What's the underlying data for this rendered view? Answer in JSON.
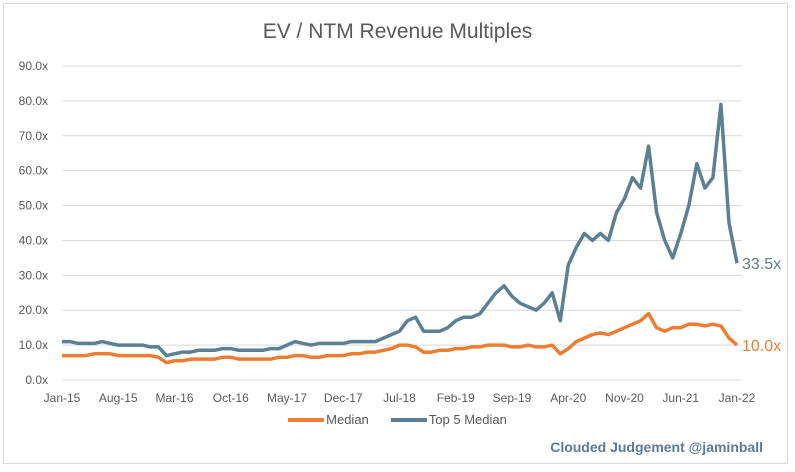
{
  "chart_data": {
    "type": "line",
    "title": "EV / NTM Revenue Multiples",
    "xlabel": "",
    "ylabel": "",
    "ylim": [
      0,
      90
    ],
    "y_ticks": [
      "0.0x",
      "10.0x",
      "20.0x",
      "30.0x",
      "40.0x",
      "50.0x",
      "60.0x",
      "70.0x",
      "80.0x",
      "90.0x"
    ],
    "y_tick_values": [
      0,
      10,
      20,
      30,
      40,
      50,
      60,
      70,
      80,
      90
    ],
    "x_ticks": [
      "Jan-15",
      "Aug-15",
      "Mar-16",
      "Oct-16",
      "May-17",
      "Dec-17",
      "Jul-18",
      "Feb-19",
      "Sep-19",
      "Apr-20",
      "Nov-20",
      "Jun-21",
      "Jan-22"
    ],
    "x_tick_month_index": [
      0,
      7,
      14,
      21,
      28,
      35,
      42,
      49,
      56,
      63,
      70,
      77,
      84
    ],
    "x_unit": "months since Jan-15",
    "grid": true,
    "legend_position": "bottom",
    "series": [
      {
        "name": "Median",
        "color": "#ED7D31",
        "end_label": "10.0x",
        "values": [
          7,
          7,
          7,
          7,
          7.5,
          7.5,
          7.5,
          7,
          7,
          7,
          7,
          7,
          6.5,
          5,
          5.5,
          5.5,
          6,
          6,
          6,
          6,
          6.5,
          6.5,
          6,
          6,
          6,
          6,
          6,
          6.5,
          6.5,
          7,
          7,
          6.5,
          6.5,
          7,
          7,
          7,
          7.5,
          7.5,
          8,
          8,
          8.5,
          9,
          10,
          10,
          9.5,
          8,
          8,
          8.5,
          8.5,
          9,
          9,
          9.5,
          9.5,
          10,
          10,
          10,
          9.5,
          9.5,
          10,
          9.5,
          9.5,
          10,
          7.5,
          9,
          11,
          12,
          13,
          13.5,
          13,
          14,
          15,
          16,
          17,
          19,
          15,
          14,
          15,
          15,
          16,
          16,
          15.5,
          16,
          15.5,
          12,
          10
        ]
      },
      {
        "name": "Top 5 Median",
        "color": "#5B7F95",
        "end_label": "33.5x",
        "values": [
          11,
          11,
          10.5,
          10.5,
          10.5,
          11,
          10.5,
          10,
          10,
          10,
          10,
          9.5,
          9.5,
          7,
          7.5,
          8,
          8,
          8.5,
          8.5,
          8.5,
          9,
          9,
          8.5,
          8.5,
          8.5,
          8.5,
          9,
          9,
          10,
          11,
          10.5,
          10,
          10.5,
          10.5,
          10.5,
          10.5,
          11,
          11,
          11,
          11,
          12,
          13,
          14,
          17,
          18,
          14,
          14,
          14,
          15,
          17,
          18,
          18,
          19,
          22,
          25,
          27,
          24,
          22,
          21,
          20,
          22,
          25,
          17,
          33,
          38,
          42,
          40,
          42,
          40,
          48,
          52,
          58,
          55,
          67,
          48,
          40,
          35,
          42,
          50,
          62,
          55,
          58,
          79,
          45,
          33.5
        ]
      }
    ]
  },
  "watermark": "Clouded Judgement @jaminball"
}
